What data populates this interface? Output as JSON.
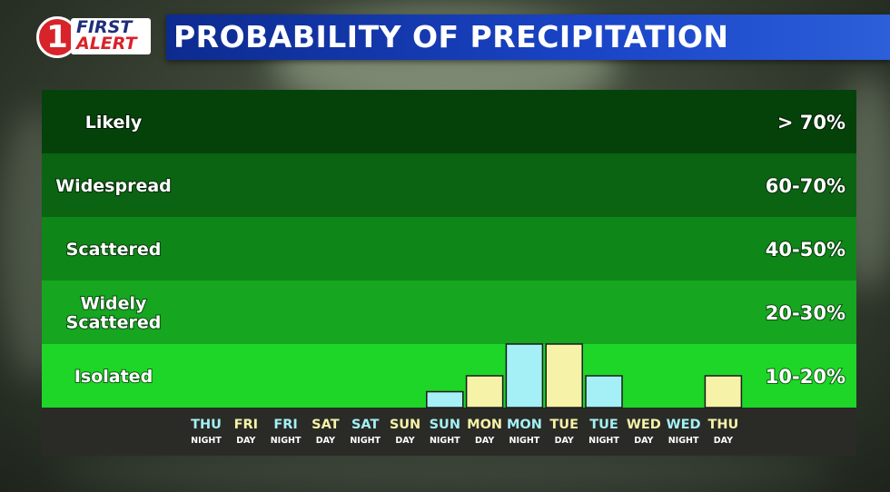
{
  "logo": {
    "number": "1",
    "line1": "FIRST",
    "line2": "ALERT"
  },
  "header": {
    "title": "PROBABILITY OF PRECIPITATION"
  },
  "colors": {
    "band_likely": "#04420a",
    "band_widespread": "#0a6412",
    "band_scattered": "#0f8618",
    "band_widely_scattered": "#16a620",
    "band_isolated": "#1ed628",
    "axis_bg": "#2a2a26",
    "night": "#a4f0f6",
    "day": "#f6f2a8"
  },
  "chart_data": {
    "type": "bar",
    "title": "PROBABILITY OF PRECIPITATION",
    "y_scale": "categorical",
    "bands": [
      {
        "name": "Likely",
        "range": "> 70%"
      },
      {
        "name": "Widespread",
        "range": "60-70%"
      },
      {
        "name": "Scattered",
        "range": "40-50%"
      },
      {
        "name": "Widely Scattered",
        "range": "20-30%"
      },
      {
        "name": "Isolated",
        "range": "10-20%"
      }
    ],
    "categories": [
      {
        "day": "THU",
        "period": "NIGHT",
        "value": 0
      },
      {
        "day": "FRI",
        "period": "DAY",
        "value": 0
      },
      {
        "day": "FRI",
        "period": "NIGHT",
        "value": 0
      },
      {
        "day": "SAT",
        "period": "DAY",
        "value": 0
      },
      {
        "day": "SAT",
        "period": "NIGHT",
        "value": 0
      },
      {
        "day": "SUN",
        "period": "DAY",
        "value": 0
      },
      {
        "day": "SUN",
        "period": "NIGHT",
        "value": 5
      },
      {
        "day": "MON",
        "period": "DAY",
        "value": 10
      },
      {
        "day": "MON",
        "period": "NIGHT",
        "value": 20
      },
      {
        "day": "TUE",
        "period": "DAY",
        "value": 20
      },
      {
        "day": "TUE",
        "period": "NIGHT",
        "value": 10
      },
      {
        "day": "WED",
        "period": "DAY",
        "value": 0
      },
      {
        "day": "WED",
        "period": "NIGHT",
        "value": 0
      },
      {
        "day": "THU",
        "period": "DAY",
        "value": 10
      }
    ],
    "value_unit": "%",
    "grid": false,
    "legend": "none"
  }
}
